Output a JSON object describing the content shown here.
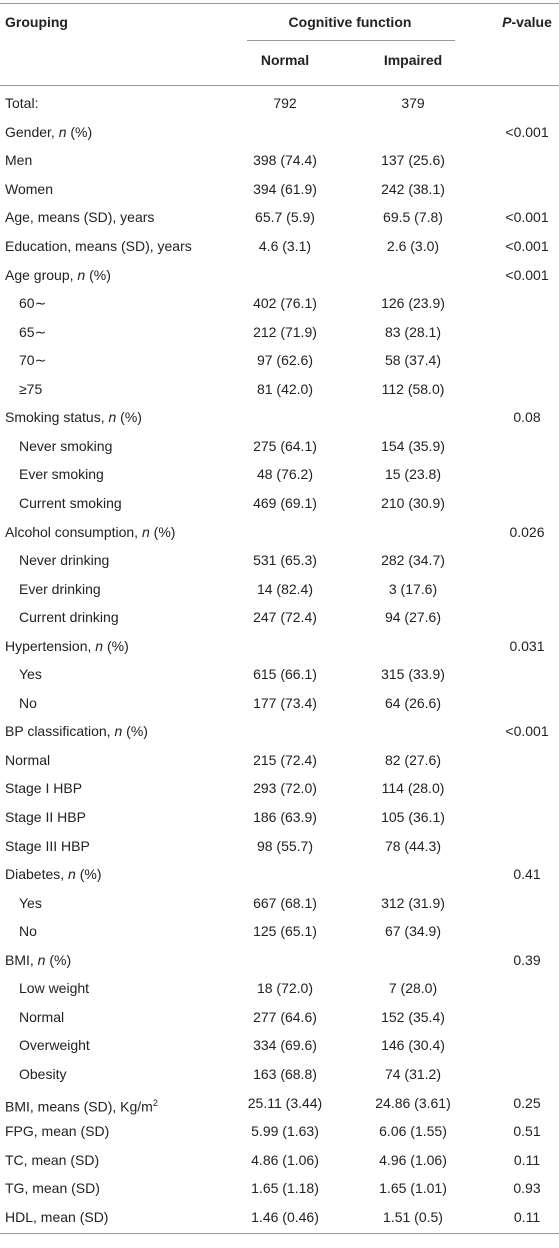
{
  "header": {
    "grouping": "Grouping",
    "group_title": "Cognitive function",
    "p_value": [
      {
        "text": "P",
        "style": "italic"
      },
      "-value"
    ],
    "columns": [
      "Normal",
      "Impaired"
    ]
  },
  "rows": [
    {
      "label": [
        "Total:"
      ],
      "normal": "792",
      "impaired": "379"
    },
    {
      "label": [
        "Gender, ",
        {
          "text": "n",
          "style": "italic"
        },
        " (%)"
      ],
      "p": "<0.001"
    },
    {
      "label": [
        "Men"
      ],
      "normal": "398 (74.4)",
      "impaired": "137 (25.6)"
    },
    {
      "label": [
        "Women"
      ],
      "normal": "394 (61.9)",
      "impaired": "242 (38.1)"
    },
    {
      "label": [
        "Age, means (SD), years"
      ],
      "normal": "65.7 (5.9)",
      "impaired": "69.5 (7.8)",
      "p": "<0.001"
    },
    {
      "label": [
        "Education, means (SD), years"
      ],
      "normal": "4.6 (3.1)",
      "impaired": "2.6 (3.0)",
      "p": "<0.001"
    },
    {
      "label": [
        "Age group, ",
        {
          "text": "n",
          "style": "italic"
        },
        " (%)"
      ],
      "p": "<0.001"
    },
    {
      "label": [
        "60∼"
      ],
      "normal": "402 (76.1)",
      "impaired": "126 (23.9)",
      "indent": true
    },
    {
      "label": [
        "65∼"
      ],
      "normal": "212 (71.9)",
      "impaired": "83 (28.1)",
      "indent": true
    },
    {
      "label": [
        "70∼"
      ],
      "normal": "97 (62.6)",
      "impaired": "58 (37.4)",
      "indent": true
    },
    {
      "label": [
        "≥75"
      ],
      "normal": "81 (42.0)",
      "impaired": "112 (58.0)",
      "indent": true
    },
    {
      "label": [
        "Smoking status, ",
        {
          "text": "n",
          "style": "italic"
        },
        " (%)"
      ],
      "p": "0.08"
    },
    {
      "label": [
        "Never smoking"
      ],
      "normal": "275 (64.1)",
      "impaired": "154 (35.9)",
      "indent": true
    },
    {
      "label": [
        "Ever smoking"
      ],
      "normal": "48 (76.2)",
      "impaired": "15 (23.8)",
      "indent": true
    },
    {
      "label": [
        "Current smoking"
      ],
      "normal": "469 (69.1)",
      "impaired": "210 (30.9)",
      "indent": true
    },
    {
      "label": [
        "Alcohol consumption, ",
        {
          "text": "n",
          "style": "italic"
        },
        " (%)"
      ],
      "p": "0.026"
    },
    {
      "label": [
        "Never drinking"
      ],
      "normal": "531 (65.3)",
      "impaired": "282 (34.7)",
      "indent": true
    },
    {
      "label": [
        "Ever drinking"
      ],
      "normal": "14 (82.4)",
      "impaired": "3 (17.6)",
      "indent": true
    },
    {
      "label": [
        "Current drinking"
      ],
      "normal": "247 (72.4)",
      "impaired": "94 (27.6)",
      "indent": true
    },
    {
      "label": [
        "Hypertension, ",
        {
          "text": "n",
          "style": "italic"
        },
        " (%)"
      ],
      "p": "0.031"
    },
    {
      "label": [
        "Yes"
      ],
      "normal": "615 (66.1)",
      "impaired": "315 (33.9)",
      "indent": true
    },
    {
      "label": [
        "No"
      ],
      "normal": "177 (73.4)",
      "impaired": "64 (26.6)",
      "indent": true
    },
    {
      "label": [
        "BP classification, ",
        {
          "text": "n",
          "style": "italic"
        },
        " (%)"
      ],
      "p": "<0.001"
    },
    {
      "label": [
        "Normal"
      ],
      "normal": "215 (72.4)",
      "impaired": "82 (27.6)"
    },
    {
      "label": [
        "Stage I HBP"
      ],
      "normal": "293 (72.0)",
      "impaired": "114 (28.0)"
    },
    {
      "label": [
        "Stage II HBP"
      ],
      "normal": "186 (63.9)",
      "impaired": "105 (36.1)"
    },
    {
      "label": [
        "Stage III HBP"
      ],
      "normal": "98 (55.7)",
      "impaired": "78 (44.3)"
    },
    {
      "label": [
        "Diabetes, ",
        {
          "text": "n",
          "style": "italic"
        },
        " (%)"
      ],
      "p": "0.41"
    },
    {
      "label": [
        "Yes"
      ],
      "normal": "667 (68.1)",
      "impaired": "312 (31.9)",
      "indent": true
    },
    {
      "label": [
        "No"
      ],
      "normal": "125 (65.1)",
      "impaired": "67 (34.9)",
      "indent": true
    },
    {
      "label": [
        "BMI, ",
        {
          "text": "n",
          "style": "italic"
        },
        " (%)"
      ],
      "p": "0.39"
    },
    {
      "label": [
        "Low weight"
      ],
      "normal": "18 (72.0)",
      "impaired": "7 (28.0)",
      "indent": true
    },
    {
      "label": [
        "Normal"
      ],
      "normal": "277 (64.6)",
      "impaired": "152 (35.4)",
      "indent": true
    },
    {
      "label": [
        "Overweight"
      ],
      "normal": "334 (69.6)",
      "impaired": "146 (30.4)",
      "indent": true
    },
    {
      "label": [
        "Obesity"
      ],
      "normal": "163 (68.8)",
      "impaired": "74 (31.2)",
      "indent": true
    },
    {
      "label": [
        "BMI, means (SD), Kg/m",
        {
          "text": "2",
          "style": "sup"
        }
      ],
      "normal": "25.11 (3.44)",
      "impaired": "24.86 (3.61)",
      "p": "0.25"
    },
    {
      "label": [
        "FPG, mean (SD)"
      ],
      "normal": "5.99 (1.63)",
      "impaired": "6.06 (1.55)",
      "p": "0.51"
    },
    {
      "label": [
        "TC, mean (SD)"
      ],
      "normal": "4.86 (1.06)",
      "impaired": "4.96 (1.06)",
      "p": "0.11"
    },
    {
      "label": [
        "TG, mean (SD)"
      ],
      "normal": "1.65 (1.18)",
      "impaired": "1.65 (1.01)",
      "p": "0.93"
    },
    {
      "label": [
        "HDL, mean (SD)"
      ],
      "normal": "1.46 (0.46)",
      "impaired": "1.51 (0.5)",
      "p": "0.11"
    }
  ]
}
